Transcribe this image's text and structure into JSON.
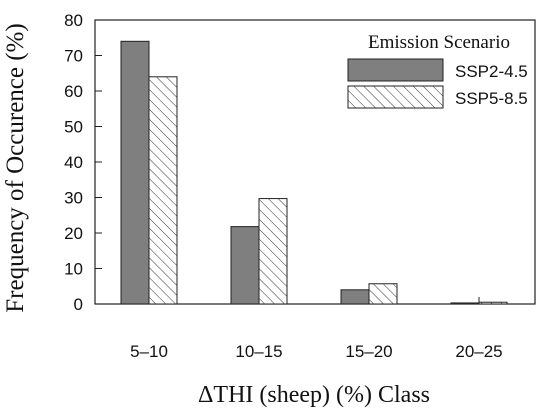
{
  "chart_data": {
    "type": "bar",
    "title": "",
    "xlabel": "ΔTHI (sheep) (%) Class",
    "ylabel": "Frequency of Occurence (%)",
    "categories": [
      "5–10",
      "10–15",
      "15–20",
      "20–25"
    ],
    "ylim": [
      0,
      80
    ],
    "yticks": [
      "0",
      "10",
      "20",
      "30",
      "40",
      "50",
      "60",
      "70",
      "80"
    ],
    "grid": false,
    "legend": {
      "title": "Emission Scenario",
      "position": "top-right"
    },
    "series": [
      {
        "name": "SSP2-4.5",
        "fill": "solid",
        "color": "#7f7f7f",
        "values": [
          74,
          21.8,
          4.0,
          0.3
        ]
      },
      {
        "name": "SSP5-8.5",
        "fill": "hatch",
        "color": "#ffffff",
        "values": [
          64,
          29.7,
          5.7,
          0.5
        ]
      }
    ]
  }
}
